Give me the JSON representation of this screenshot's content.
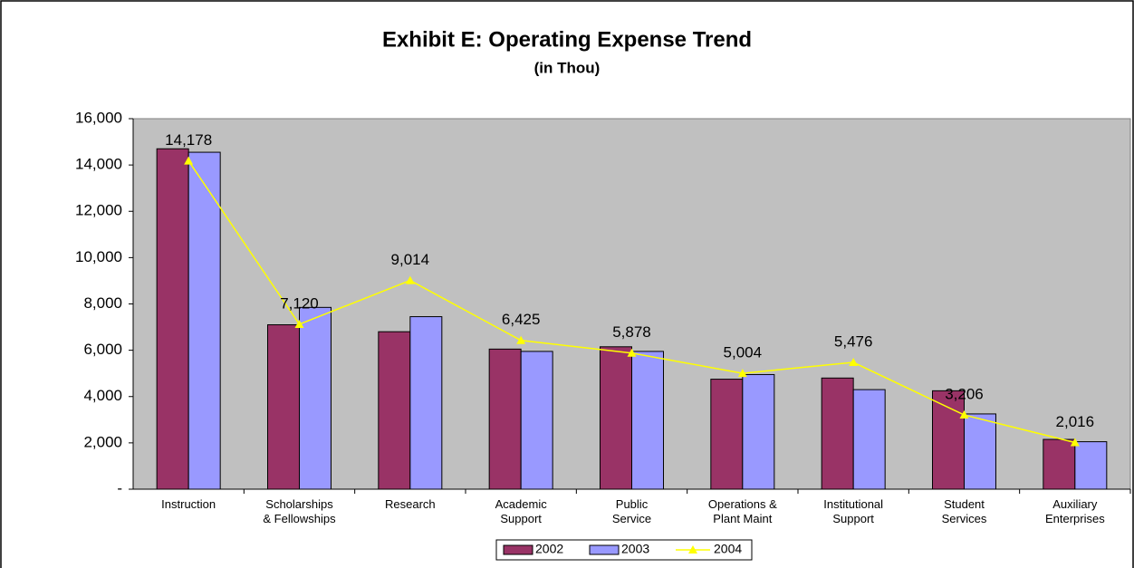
{
  "chart_data": {
    "type": "bar",
    "title": "Exhibit E: Operating Expense Trend",
    "subtitle": "(in Thou)",
    "categories": [
      [
        "Instruction"
      ],
      [
        "Scholarships",
        "& Fellowships"
      ],
      [
        "Research"
      ],
      [
        "Academic",
        "Support"
      ],
      [
        "Public",
        "Service"
      ],
      [
        "Operations &",
        "Plant Maint"
      ],
      [
        "Institutional",
        "Support"
      ],
      [
        "Student",
        "Services"
      ],
      [
        "Auxiliary",
        "Enterprises"
      ]
    ],
    "series": [
      {
        "name": "2002",
        "type": "bar",
        "color": "#993366",
        "values": [
          14700,
          7100,
          6800,
          6050,
          6150,
          4750,
          4800,
          4250,
          2150
        ]
      },
      {
        "name": "2003",
        "type": "bar",
        "color": "#9999ff",
        "values": [
          14550,
          7850,
          7450,
          5950,
          5950,
          4950,
          4300,
          3250,
          2050
        ]
      },
      {
        "name": "2004",
        "type": "line",
        "color": "#ffff00",
        "values": [
          14178,
          7120,
          9014,
          6425,
          5878,
          5004,
          5476,
          3206,
          2016
        ],
        "value_labels": [
          "14,178",
          "7,120",
          "9,014",
          "6,425",
          "5,878",
          "5,004",
          "5,476",
          "3,206",
          "2,016"
        ]
      }
    ],
    "ylim": [
      0,
      16000
    ],
    "yticks": [
      {
        "value": 0,
        "label": "-"
      },
      {
        "value": 2000,
        "label": "2,000"
      },
      {
        "value": 4000,
        "label": "4,000"
      },
      {
        "value": 6000,
        "label": "6,000"
      },
      {
        "value": 8000,
        "label": "8,000"
      },
      {
        "value": 10000,
        "label": "10,000"
      },
      {
        "value": 12000,
        "label": "12,000"
      },
      {
        "value": 14000,
        "label": "14,000"
      },
      {
        "value": 16000,
        "label": "16,000"
      }
    ],
    "plot_background": "#c0c0c0",
    "legend": "bottom"
  }
}
